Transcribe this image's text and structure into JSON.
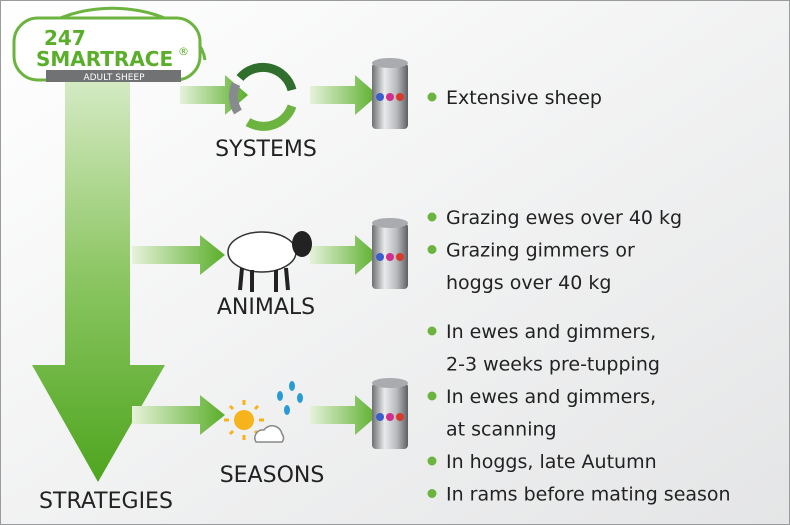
{
  "logo": {
    "number": "247",
    "brand": "SMARTRACE",
    "mark": "®",
    "product": "ADULT SHEEP"
  },
  "rows": [
    {
      "label": "SYSTEMS",
      "items": [
        [
          "Extensive sheep"
        ]
      ]
    },
    {
      "label": "ANIMALS",
      "items": [
        [
          "Grazing ewes over 40 kg"
        ],
        [
          "Grazing gimmers or",
          "hoggs over 40 kg"
        ]
      ]
    },
    {
      "label": "SEASONS",
      "items": [
        [
          "In ewes and gimmers,",
          "2-3 weeks pre-tupping"
        ],
        [
          "In ewes and gimmers,",
          "at scanning"
        ],
        [
          "In hoggs, late Autumn"
        ],
        [
          "In rams before mating season"
        ]
      ]
    }
  ],
  "footer": "STRATEGIES"
}
